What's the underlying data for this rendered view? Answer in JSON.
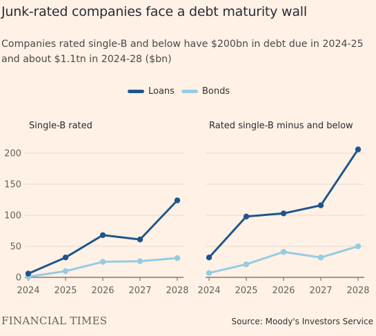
{
  "title": "Junk-rated companies face a debt maturity wall",
  "subtitle": "Companies rated single-B and below have $200bn in debt due in 2024-25 and about $1.1tn in 2024-28 ($bn)",
  "legend": [
    {
      "name": "Loans",
      "color": "#1e558c"
    },
    {
      "name": "Bonds",
      "color": "#96cbe4"
    }
  ],
  "footer": {
    "brand": "FINANCIAL TIMES",
    "source": "Source: Moody's Investors Service"
  },
  "chart_data": [
    {
      "type": "line",
      "title": "Single-B rated",
      "x": [
        "2024",
        "2025",
        "2026",
        "2027",
        "2028"
      ],
      "ylim": [
        0,
        200
      ],
      "yticks": [
        "0",
        "50",
        "100",
        "150",
        "200"
      ],
      "grid": true,
      "series": [
        {
          "name": "Loans",
          "values": [
            6,
            32,
            68,
            61,
            124
          ]
        },
        {
          "name": "Bonds",
          "values": [
            1,
            10,
            25,
            26,
            31
          ]
        }
      ]
    },
    {
      "type": "line",
      "title": "Rated single-B minus and below",
      "x": [
        "2024",
        "2025",
        "2026",
        "2027",
        "2028"
      ],
      "ylim": [
        0,
        200
      ],
      "yticks": [
        "0",
        "50",
        "100",
        "150",
        "200"
      ],
      "grid": true,
      "series": [
        {
          "name": "Loans",
          "values": [
            32,
            98,
            103,
            116,
            206
          ]
        },
        {
          "name": "Bonds",
          "values": [
            7,
            21,
            41,
            32,
            50
          ]
        }
      ]
    }
  ]
}
